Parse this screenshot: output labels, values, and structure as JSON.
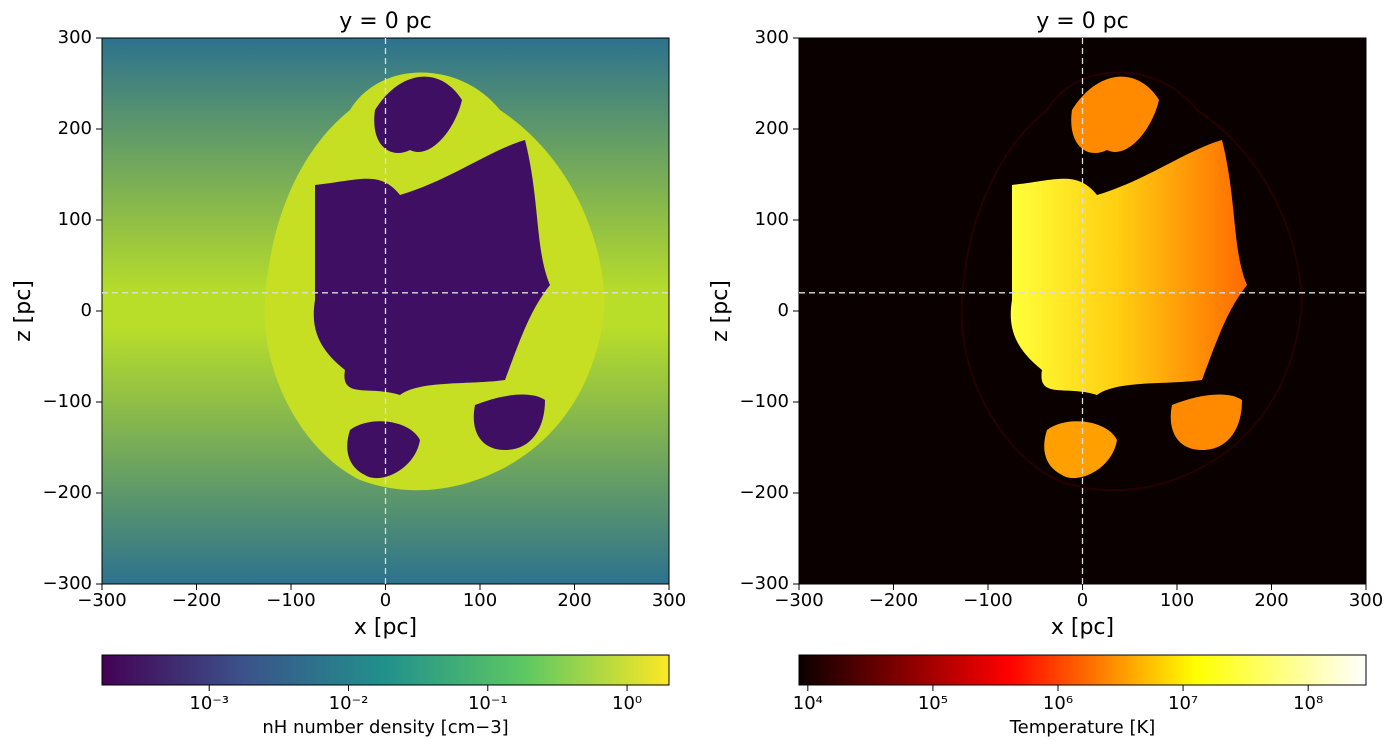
{
  "chart_data": [
    {
      "type": "heatmap",
      "title": "y = 0 pc",
      "xlabel": "x [pc]",
      "ylabel": "z [pc]",
      "xlim": [
        -300,
        300
      ],
      "ylim": [
        -300,
        300
      ],
      "xticks": [
        {
          "value": -300,
          "label": "−300"
        },
        {
          "value": -200,
          "label": "−200"
        },
        {
          "value": -100,
          "label": "−100"
        },
        0,
        100,
        200,
        300
      ],
      "yticks": [
        {
          "value": -300,
          "label": "−300"
        },
        {
          "value": -200,
          "label": "−200"
        },
        {
          "value": -100,
          "label": "−100"
        },
        0,
        100,
        200,
        300
      ],
      "crosshair": {
        "x": 0,
        "y": 20
      },
      "colorbar": {
        "label": "nH number density [cm−3]",
        "colormap": "viridis",
        "scale": "log",
        "lim": [
          0.00017,
          2.0
        ],
        "ticks": [
          {
            "value": 0.001,
            "label": "10⁻³"
          },
          {
            "value": 0.01,
            "label": "10⁻²"
          },
          {
            "value": 0.1,
            "label": "10⁻¹"
          },
          {
            "value": 1,
            "label": "10⁰"
          }
        ]
      }
    },
    {
      "type": "heatmap",
      "title": "y = 0 pc",
      "xlabel": "x [pc]",
      "ylabel": "z [pc]",
      "xlim": [
        -300,
        300
      ],
      "ylim": [
        -300,
        300
      ],
      "xticks": [
        {
          "value": -300,
          "label": "−300"
        },
        {
          "value": -200,
          "label": "−200"
        },
        {
          "value": -100,
          "label": "−100"
        },
        0,
        100,
        200,
        300
      ],
      "yticks": [
        {
          "value": -300,
          "label": "−300"
        },
        {
          "value": -200,
          "label": "−200"
        },
        {
          "value": -100,
          "label": "−100"
        },
        0,
        100,
        200,
        300
      ],
      "crosshair": {
        "x": 0,
        "y": 20
      },
      "colorbar": {
        "label": "Temperature [K]",
        "colormap": "hot",
        "scale": "log",
        "lim": [
          8500,
          290000000
        ],
        "ticks": [
          {
            "value": 10000,
            "label": "10⁴"
          },
          {
            "value": 100000,
            "label": "10⁵"
          },
          {
            "value": 1000000,
            "label": "10⁶"
          },
          {
            "value": 10000000,
            "label": "10⁷"
          },
          {
            "value": 100000000,
            "label": "10⁸"
          }
        ]
      }
    }
  ]
}
